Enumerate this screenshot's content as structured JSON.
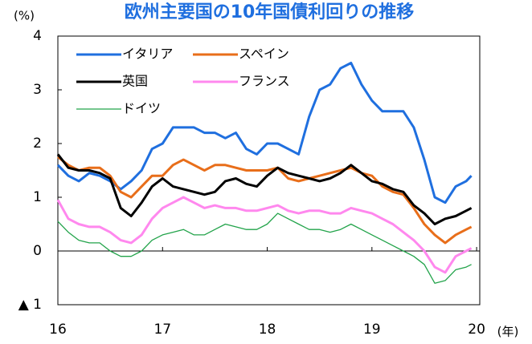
{
  "chart_data": {
    "type": "line",
    "title": "欧州主要国の10年国債利回りの推移",
    "ylabel": "(%)",
    "xlabel": "(年)",
    "x": [
      16.0,
      16.1,
      16.2,
      16.3,
      16.4,
      16.5,
      16.6,
      16.7,
      16.8,
      16.9,
      17.0,
      17.1,
      17.2,
      17.3,
      17.4,
      17.5,
      17.6,
      17.7,
      17.8,
      17.9,
      18.0,
      18.1,
      18.2,
      18.3,
      18.4,
      18.5,
      18.6,
      18.7,
      18.8,
      18.9,
      19.0,
      19.1,
      19.2,
      19.3,
      19.4,
      19.5,
      19.6,
      19.7,
      19.8,
      19.9,
      19.95
    ],
    "series": [
      {
        "name": "イタリア",
        "color": "#1f6fdf",
        "values": [
          1.6,
          1.4,
          1.3,
          1.45,
          1.4,
          1.3,
          1.15,
          1.3,
          1.5,
          1.9,
          2.0,
          2.3,
          2.3,
          2.3,
          2.2,
          2.2,
          2.1,
          2.2,
          1.9,
          1.8,
          2.0,
          2.0,
          1.9,
          1.8,
          2.5,
          3.0,
          3.1,
          3.4,
          3.5,
          3.1,
          2.8,
          2.6,
          2.6,
          2.6,
          2.3,
          1.7,
          1.0,
          0.9,
          1.2,
          1.3,
          1.4
        ]
      },
      {
        "name": "スペイン",
        "color": "#e86e1a",
        "values": [
          1.75,
          1.6,
          1.5,
          1.55,
          1.55,
          1.4,
          1.1,
          1.0,
          1.2,
          1.4,
          1.4,
          1.6,
          1.7,
          1.6,
          1.5,
          1.6,
          1.6,
          1.55,
          1.5,
          1.5,
          1.5,
          1.55,
          1.35,
          1.3,
          1.35,
          1.4,
          1.45,
          1.5,
          1.55,
          1.45,
          1.4,
          1.2,
          1.1,
          1.05,
          0.8,
          0.5,
          0.3,
          0.15,
          0.3,
          0.4,
          0.45
        ]
      },
      {
        "name": "英国",
        "color": "#000000",
        "values": [
          1.8,
          1.55,
          1.5,
          1.5,
          1.45,
          1.35,
          0.8,
          0.65,
          0.9,
          1.2,
          1.35,
          1.2,
          1.15,
          1.1,
          1.05,
          1.1,
          1.3,
          1.35,
          1.25,
          1.2,
          1.4,
          1.55,
          1.45,
          1.4,
          1.35,
          1.3,
          1.35,
          1.45,
          1.6,
          1.45,
          1.3,
          1.25,
          1.15,
          1.1,
          0.85,
          0.7,
          0.5,
          0.6,
          0.65,
          0.75,
          0.8
        ]
      },
      {
        "name": "フランス",
        "color": "#ff88ee",
        "values": [
          0.95,
          0.6,
          0.5,
          0.45,
          0.45,
          0.35,
          0.2,
          0.15,
          0.3,
          0.6,
          0.8,
          0.9,
          1.0,
          0.9,
          0.8,
          0.85,
          0.8,
          0.8,
          0.75,
          0.75,
          0.8,
          0.85,
          0.75,
          0.7,
          0.75,
          0.75,
          0.7,
          0.7,
          0.8,
          0.75,
          0.7,
          0.6,
          0.5,
          0.35,
          0.2,
          0.0,
          -0.3,
          -0.4,
          -0.1,
          0.0,
          0.05
        ]
      },
      {
        "name": "ドイツ",
        "color": "#22a34a",
        "values": [
          0.55,
          0.35,
          0.2,
          0.15,
          0.15,
          0.0,
          -0.1,
          -0.1,
          0.0,
          0.2,
          0.3,
          0.35,
          0.4,
          0.3,
          0.3,
          0.4,
          0.5,
          0.45,
          0.4,
          0.4,
          0.5,
          0.7,
          0.6,
          0.5,
          0.4,
          0.4,
          0.35,
          0.4,
          0.5,
          0.4,
          0.3,
          0.2,
          0.1,
          0.0,
          -0.1,
          -0.25,
          -0.6,
          -0.55,
          -0.35,
          -0.3,
          -0.25
        ]
      }
    ],
    "xlim": [
      16,
      20.03
    ],
    "xticks": [
      16,
      17,
      18,
      19,
      20
    ],
    "ylim": [
      -1,
      4
    ],
    "yticks": [
      {
        "value": -1,
        "label": "▲ 1"
      },
      0,
      1,
      2,
      3,
      4
    ],
    "legend": "upper-left"
  }
}
